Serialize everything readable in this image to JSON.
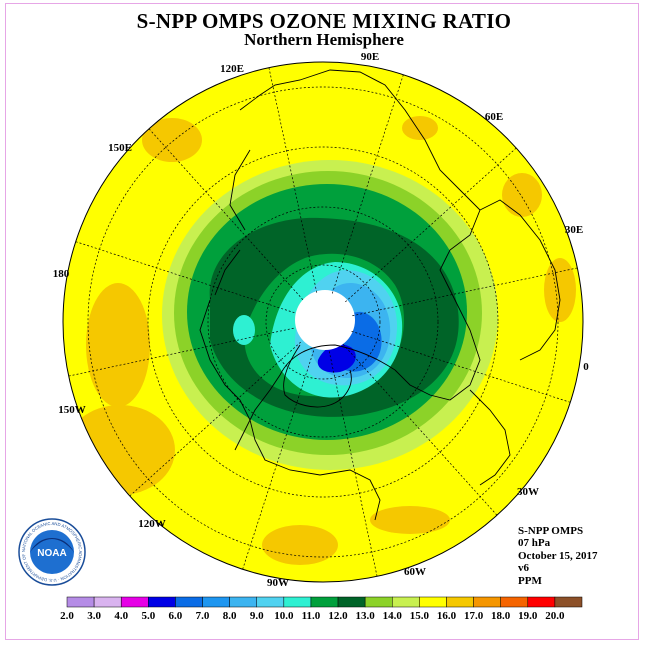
{
  "title": "S-NPP OMPS OZONE MIXING RATIO",
  "subtitle": "Northern Hemisphere",
  "info": {
    "instrument": "S-NPP OMPS",
    "level": "07 hPa",
    "date": "October 15, 2017",
    "version": "v6",
    "units": "PPM"
  },
  "logo": {
    "text": "NOAA",
    "ring_text": "NATIONAL OCEANIC AND ATMOSPHERIC ADMINISTRATION · U.S. DEPARTMENT OF COMMERCE"
  },
  "longitude_labels": [
    "90E",
    "60E",
    "30E",
    "0",
    "30W",
    "60W",
    "90W",
    "120W",
    "150W",
    "180",
    "150E",
    "120E"
  ],
  "colorbar": {
    "tick_labels": [
      "2.0",
      "3.0",
      "4.0",
      "5.0",
      "6.0",
      "7.0",
      "8.0",
      "9.0",
      "10.0",
      "11.0",
      "12.0",
      "13.0",
      "14.0",
      "15.0",
      "16.0",
      "17.0",
      "18.0",
      "19.0",
      "20.0"
    ],
    "colors": [
      "#b58ce6",
      "#d9b3ef",
      "#e600e6",
      "#0000e6",
      "#0a6ce6",
      "#1e96f0",
      "#3cb4f0",
      "#50d2f0",
      "#2ef0d2",
      "#00a03c",
      "#006428",
      "#8cd228",
      "#c8f050",
      "#ffff00",
      "#f5c800",
      "#f59600",
      "#f56400",
      "#ff0000",
      "#8c5028"
    ]
  },
  "chart_data": {
    "type": "heatmap",
    "title": "S-NPP OMPS OZONE MIXING RATIO",
    "subtitle": "Northern Hemisphere",
    "projection": "north polar stereographic",
    "units": "PPM",
    "pressure_level": "07 hPa",
    "date": "October 15, 2017",
    "color_scale": {
      "min": 2.0,
      "max": 20.0,
      "step": 1.0
    },
    "regions": [
      {
        "description": "outer mid-latitudes",
        "range": [
          15.0,
          16.0
        ]
      },
      {
        "description": "patches over Pacific, Atlantic, Asia",
        "range": [
          16.0,
          17.0
        ]
      },
      {
        "description": "sub-polar ring",
        "range": [
          13.0,
          15.0
        ]
      },
      {
        "description": "polar collar",
        "range": [
          10.0,
          13.0
        ]
      },
      {
        "description": "inner polar region",
        "range": [
          8.0,
          10.0
        ]
      },
      {
        "description": "near-pole minimum",
        "range": [
          5.0,
          8.0
        ]
      }
    ],
    "no_data_region": "pole"
  }
}
